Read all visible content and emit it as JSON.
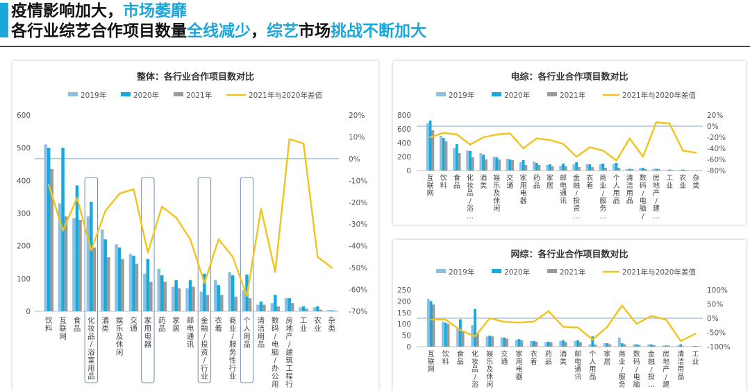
{
  "header": {
    "line1_a": "疫情影响加大，",
    "line1_b": "市场萎靡",
    "line2_a": "各行业综艺合作项目数量",
    "line2_b": "全线减少",
    "line2_c": "，",
    "line2_d": "综艺",
    "line2_e": "市场",
    "line2_f": "挑战不断加大"
  },
  "colors": {
    "accent": "#1aa8dc",
    "y2019": "#8dbfe0",
    "y2020": "#17a9dd",
    "y2021": "#9a9a9a",
    "diff": "#f2c31b"
  },
  "chart_data": [
    {
      "type": "bar",
      "title": "整体：各行业合作项目数对比",
      "legend": [
        "2019年",
        "2020年",
        "2021年",
        "2021年与2020年差值"
      ],
      "categories": [
        "饮料",
        "互联网",
        "食品",
        "化妆品/浴室用品",
        "酒类",
        "娱乐及休闲",
        "交通",
        "家用电器",
        "药品",
        "家居",
        "邮电通讯",
        "金融/投资/行业",
        "衣着",
        "商业/服务性行业",
        "个人用品",
        "清洁用品",
        "数码/电脑/办公用品",
        "房地产/建筑工程行业",
        "工业",
        "农业",
        "杂类"
      ],
      "series": [
        {
          "name": "2019年",
          "values": [
            510,
            330,
            285,
            290,
            250,
            205,
            175,
            115,
            130,
            75,
            70,
            60,
            95,
            120,
            65,
            20,
            25,
            40,
            12,
            12,
            4
          ]
        },
        {
          "name": "2020年",
          "values": [
            500,
            500,
            385,
            335,
            220,
            195,
            170,
            160,
            110,
            95,
            95,
            115,
            80,
            110,
            112,
            30,
            50,
            40,
            15,
            15,
            3
          ]
        },
        {
          "name": "2021年",
          "values": [
            435,
            290,
            280,
            195,
            165,
            160,
            145,
            90,
            90,
            70,
            75,
            50,
            50,
            45,
            40,
            20,
            15,
            25,
            8,
            5,
            2
          ]
        },
        {
          "name": "2021年与2020年差值",
          "axis": "right",
          "values": [
            -0.12,
            -0.33,
            -0.18,
            -0.42,
            -0.24,
            -0.16,
            -0.14,
            -0.43,
            -0.22,
            -0.27,
            -0.37,
            -0.57,
            -0.37,
            -0.45,
            -0.63,
            -0.23,
            -0.52,
            0.09,
            0.07,
            -0.45,
            -0.5
          ]
        }
      ],
      "ylim": [
        0,
        600
      ],
      "yticks": [
        "0",
        "100",
        "200",
        "300",
        "400",
        "500",
        "600"
      ],
      "y2lim": [
        -0.7,
        0.2
      ],
      "y2ticks": [
        "20%",
        "10%",
        "0%",
        "-10%",
        "-20%",
        "-30%",
        "-40%",
        "-50%",
        "-60%",
        "-70%"
      ],
      "highlighted": [
        3,
        7,
        11,
        14
      ]
    },
    {
      "type": "bar",
      "title": "电综：各行业合作项目数对比",
      "legend": [
        "2019年",
        "2020年",
        "2021年",
        "2021年与2020年差值"
      ],
      "categories": [
        "互联网",
        "饮料",
        "食品",
        "化妆品/浴…",
        "酒类",
        "娱乐及休闲",
        "交通",
        "家用电器",
        "药品",
        "家居",
        "邮电通讯",
        "金融/投资…",
        "衣着",
        "商业/服务…",
        "个人用品",
        "清洁用品",
        "数码/电脑/…",
        "房地产/建…",
        "工业",
        "农业",
        "杂类"
      ],
      "series": [
        {
          "name": "2019年",
          "values": [
            680,
            500,
            320,
            290,
            250,
            200,
            170,
            120,
            130,
            80,
            70,
            90,
            90,
            90,
            95,
            20,
            35,
            25,
            10,
            10,
            5
          ]
        },
        {
          "name": "2020年",
          "values": [
            720,
            470,
            380,
            280,
            230,
            190,
            160,
            150,
            110,
            90,
            100,
            120,
            90,
            100,
            110,
            25,
            40,
            25,
            15,
            15,
            5
          ]
        },
        {
          "name": "2021年",
          "values": [
            580,
            420,
            250,
            190,
            160,
            160,
            150,
            80,
            80,
            60,
            60,
            50,
            50,
            40,
            40,
            20,
            20,
            20,
            10,
            8,
            5
          ]
        },
        {
          "name": "2021年与2020年差值",
          "axis": "right",
          "values": [
            -0.2,
            -0.12,
            -0.15,
            -0.33,
            -0.2,
            -0.15,
            -0.13,
            -0.4,
            -0.22,
            -0.25,
            -0.32,
            -0.55,
            -0.38,
            -0.44,
            -0.62,
            -0.22,
            -0.55,
            0.07,
            0.05,
            -0.44,
            -0.48
          ]
        }
      ],
      "ylim": [
        0,
        800
      ],
      "yticks": [
        "0",
        "200",
        "400",
        "600",
        "800"
      ],
      "y2lim": [
        -0.8,
        0.2
      ],
      "y2ticks": [
        "20%",
        "0%",
        "-20%",
        "-40%",
        "-60%",
        "-80%"
      ]
    },
    {
      "type": "bar",
      "title": "网综：各行业合作项目数对比",
      "legend": [
        "2019年",
        "2020年",
        "2021年",
        "2021年与2020年差值"
      ],
      "categories": [
        "互联网",
        "饮料",
        "食品",
        "化妆品/浴…",
        "娱乐及休闲",
        "交通",
        "家用电器",
        "衣着",
        "药品",
        "酒类",
        "邮电通讯",
        "个人用品",
        "家居",
        "商业/服务…",
        "数码/电脑…",
        "金融/投…",
        "房地产/建…",
        "清洁用品",
        "工业"
      ],
      "series": [
        {
          "name": "2019年",
          "values": [
            210,
            110,
            80,
            95,
            45,
            40,
            30,
            25,
            20,
            25,
            25,
            10,
            15,
            40,
            10,
            10,
            5,
            5,
            3
          ]
        },
        {
          "name": "2020年",
          "values": [
            200,
            105,
            120,
            165,
            48,
            40,
            33,
            25,
            22,
            28,
            28,
            45,
            15,
            15,
            10,
            10,
            5,
            10,
            3
          ]
        },
        {
          "name": "2021年",
          "values": [
            185,
            100,
            70,
            60,
            45,
            35,
            28,
            22,
            20,
            20,
            20,
            10,
            10,
            10,
            8,
            6,
            5,
            2,
            2
          ]
        },
        {
          "name": "2021年与2020年差值",
          "axis": "right",
          "values": [
            -0.05,
            -0.05,
            -0.42,
            -0.64,
            0.0,
            -0.13,
            -0.15,
            -0.12,
            0.25,
            -0.3,
            -0.33,
            -0.75,
            -0.3,
            0.45,
            -0.2,
            0.08,
            -0.05,
            -0.8,
            -0.55
          ]
        }
      ],
      "ylim": [
        0,
        250
      ],
      "yticks": [
        "0",
        "50",
        "100",
        "150",
        "200",
        "250"
      ],
      "y2lim": [
        -1.0,
        1.0
      ],
      "y2ticks": [
        "100%",
        "50%",
        "0%",
        "-50%",
        "-100%"
      ]
    }
  ]
}
